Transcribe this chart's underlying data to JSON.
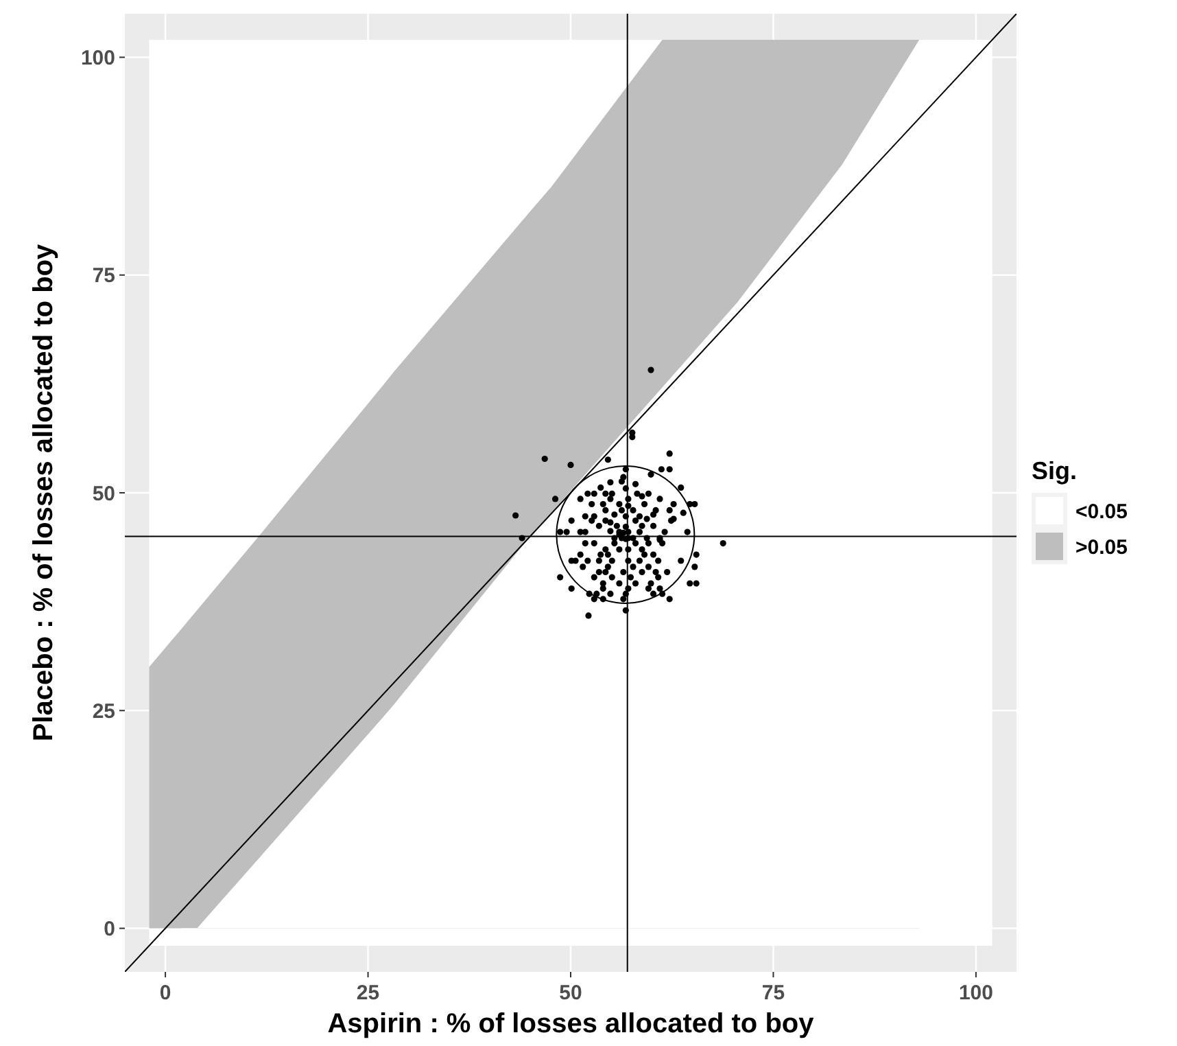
{
  "chart_data": {
    "type": "scatter",
    "xlabel": "Aspirin : % of losses allocated to boy",
    "ylabel": "Placebo : % of losses allocated to boy",
    "legend_title": "Sig.",
    "legend": "right",
    "grid": true,
    "xlim": [
      -5,
      105
    ],
    "ylim": [
      -5,
      105
    ],
    "xticks": [
      0,
      25,
      50,
      75,
      100
    ],
    "yticks": [
      0,
      25,
      50,
      75,
      100
    ],
    "ref_lines": [
      {
        "axis": "x",
        "value": 57,
        "color": "#000000"
      },
      {
        "axis": "y",
        "value": 45,
        "color": "#000000"
      }
    ],
    "series": [
      {
        "type": "area",
        "name": ">0.05",
        "color": "#bebebe",
        "x": [
          -2,
          2,
          11.6,
          27.0,
          28.2,
          45,
          47.6,
          61.3,
          70.6,
          83.5,
          93
        ],
        "values": [
          30,
          34.4,
          45.1,
          62.5,
          63.9,
          82.3,
          85.1,
          102,
          102,
          102,
          102
        ]
      },
      {
        "type": "area",
        "name": "<0.05",
        "color": "#ffffff",
        "x": [
          2,
          11.6,
          27.0,
          28.2,
          45,
          47.6,
          61.3,
          70.6,
          83.5,
          93,
          102
        ],
        "values": [
          -2,
          8.1,
          24.4,
          25.7,
          45,
          47.7,
          62.1,
          71.9,
          87.7,
          102,
          102
        ]
      },
      {
        "type": "line",
        "color": "#000000",
        "x": [
          -5,
          105
        ],
        "values": [
          -5,
          105
        ]
      },
      {
        "color": "#000000",
        "marker": "circle",
        "x": [
          59.9,
          46.8,
          50.0,
          57.6,
          57.6,
          62.2,
          48.1,
          68.8,
          52.2,
          43.2,
          44.0,
          54.6,
          56.8,
          61.2,
          62.2,
          56.5,
          59.9,
          54.9,
          56.3,
          58.0,
          53.7,
          56.8,
          63.6,
          52.1,
          52.9,
          54.3,
          55.1,
          58.2,
          59.6,
          51.2,
          54.9,
          57.1,
          58.8,
          61.0,
          52.6,
          54.0,
          56.0,
          57.1,
          59.1,
          62.7,
          64.7,
          65.3,
          54.3,
          56.3,
          57.7,
          60.5,
          62.2,
          51.8,
          52.9,
          55.4,
          56.8,
          58.5,
          60.2,
          63.9,
          50.1,
          52.6,
          54.3,
          54.9,
          58.0,
          59.4,
          62.4,
          62.7,
          53.5,
          55.7,
          56.8,
          58.8,
          60.2,
          48.7,
          49.5,
          51.2,
          51.8,
          54.9,
          56.0,
          56.5,
          57.1,
          58.5,
          61.6,
          64.4,
          56.0,
          57.1,
          55.4,
          56.3,
          56.8,
          57.7,
          59.4,
          61.0,
          51.8,
          52.9,
          55.4,
          58.0,
          59.6,
          61.3,
          61.0,
          54.3,
          56.0,
          57.1,
          58.8,
          51.2,
          53.7,
          54.6,
          59.1,
          60.2,
          65.5,
          50.1,
          50.6,
          52.1,
          53.5,
          55.1,
          57.1,
          58.5,
          60.8,
          63.6,
          51.5,
          54.6,
          57.7,
          59.6,
          65.3,
          53.5,
          54.3,
          56.5,
          58.8,
          60.5,
          61.9,
          48.7,
          52.9,
          55.1,
          57.4,
          60.8,
          54.0,
          56.0,
          58.0,
          59.9,
          64.7,
          65.5,
          50.1,
          54.0,
          57.1,
          59.6,
          61.0,
          52.3,
          53.2,
          54.9,
          56.8,
          60.2,
          61.3,
          52.9,
          54.0,
          56.5,
          62.2,
          56.8
        ],
        "values": [
          64.1,
          53.9,
          53.2,
          56.9,
          56.4,
          54.5,
          49.3,
          44.2,
          35.9,
          47.4,
          44.8,
          53.8,
          52.7,
          52.7,
          52.7,
          51.8,
          52.1,
          51.2,
          51.3,
          51.0,
          50.6,
          50.5,
          50.6,
          49.9,
          49.9,
          49.9,
          49.9,
          49.9,
          49.9,
          49.3,
          49.3,
          49.3,
          49.6,
          49.3,
          48.7,
          48.7,
          48.7,
          48.5,
          48.7,
          48.7,
          48.7,
          48.7,
          48.0,
          48.0,
          48.0,
          48.0,
          48.0,
          47.3,
          47.3,
          47.5,
          47.3,
          47.3,
          47.5,
          47.7,
          46.8,
          46.8,
          46.8,
          46.6,
          46.8,
          47.0,
          46.8,
          47.0,
          46.2,
          46.2,
          46.1,
          46.2,
          46.2,
          45.5,
          45.5,
          45.5,
          45.5,
          45.6,
          45.5,
          45.4,
          45.5,
          45.5,
          45.5,
          45.5,
          45.2,
          44.8,
          44.8,
          44.8,
          44.7,
          44.8,
          44.8,
          44.8,
          44.2,
          44.2,
          44.2,
          44.2,
          44.2,
          44.2,
          44.6,
          43.5,
          43.5,
          43.5,
          43.5,
          42.9,
          42.9,
          42.9,
          42.9,
          42.9,
          42.9,
          42.2,
          42.2,
          42.2,
          42.2,
          42.2,
          42.2,
          42.2,
          42.2,
          42.2,
          41.5,
          41.5,
          41.5,
          41.5,
          41.5,
          40.9,
          40.9,
          40.9,
          40.9,
          40.9,
          40.9,
          40.3,
          40.3,
          40.3,
          40.3,
          40.3,
          39.6,
          39.6,
          39.6,
          39.6,
          39.6,
          39.6,
          39.0,
          39.0,
          39.0,
          39.0,
          39.0,
          38.4,
          38.4,
          38.4,
          38.4,
          38.4,
          38.4,
          37.8,
          37.8,
          37.8,
          37.8,
          36.5
        ]
      }
    ]
  }
}
